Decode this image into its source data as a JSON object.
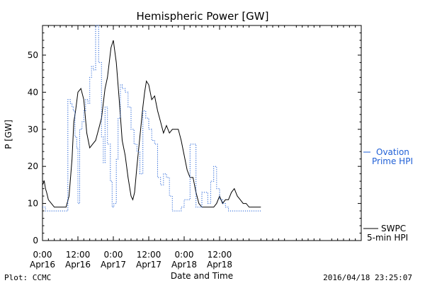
{
  "chart_data": {
    "type": "line",
    "title": "Hemispheric Power [GW]",
    "ylabel": "P [GW]",
    "xlabel": "Date and Time",
    "ylim": [
      0,
      58
    ],
    "xlim": [
      0,
      54
    ],
    "y_ticks": [
      0,
      10,
      20,
      30,
      40,
      50
    ],
    "x_ticks": [
      {
        "t": 0,
        "time": "0:00",
        "date": "Apr16"
      },
      {
        "t": 6,
        "time": "12:00",
        "date": "Apr16"
      },
      {
        "t": 12,
        "time": "0:00",
        "date": "Apr17"
      },
      {
        "t": 18,
        "time": "12:00",
        "date": "Apr17"
      },
      {
        "t": 24,
        "time": "0:00",
        "date": "Apr18"
      },
      {
        "t": 30,
        "time": "12:00",
        "date": "Apr18"
      }
    ],
    "grid": false,
    "series": [
      {
        "name": "SWPC 5-min HPI",
        "color": "#000000",
        "style": "solid",
        "x": [
          0,
          0.3,
          0.5,
          0.7,
          1.0,
          1.5,
          2.0,
          3.0,
          4.0,
          4.5,
          5.0,
          5.3,
          5.6,
          6.0,
          6.5,
          7.0,
          7.5,
          8.0,
          8.5,
          9.0,
          9.5,
          10.0,
          10.3,
          10.6,
          11.0,
          11.3,
          11.6,
          12.0,
          12.5,
          13.0,
          13.5,
          14.0,
          14.5,
          15.0,
          15.3,
          15.6,
          16.0,
          16.5,
          17.0,
          17.3,
          17.6,
          18.0,
          18.5,
          19.0,
          19.5,
          20.0,
          20.5,
          21.0,
          21.5,
          22.0,
          22.5,
          23.0,
          23.5,
          24.0,
          24.5,
          25.0,
          25.5,
          26.0,
          26.5,
          27.0,
          28.0,
          29.0,
          29.5,
          30.0,
          30.5,
          31.0,
          31.5,
          32.0,
          32.5,
          33.0,
          33.5,
          34.0,
          34.5,
          35.0,
          36.0,
          37.0
        ],
        "y": [
          15,
          16,
          14,
          13,
          11,
          10,
          9,
          9,
          9,
          12,
          22,
          32,
          35,
          40,
          41,
          38,
          29,
          25,
          26,
          27,
          30,
          33,
          37,
          41,
          44,
          48,
          52,
          54,
          48,
          38,
          27,
          23,
          17,
          12,
          11,
          13,
          20,
          28,
          36,
          40,
          43,
          42,
          38,
          39,
          35,
          32,
          29,
          31,
          29,
          30,
          30,
          30,
          27,
          23,
          19,
          17,
          17,
          13,
          10,
          9,
          9,
          9,
          10,
          12,
          10,
          11,
          11,
          13,
          14,
          12,
          11,
          10,
          10,
          9,
          9,
          9
        ]
      },
      {
        "name": "Ovation Prime HPI",
        "color": "#1f5fd6",
        "style": "dotted",
        "x": [
          0,
          0.5,
          1.0,
          2.0,
          3.0,
          4.0,
          4.3,
          4.7,
          5.0,
          5.2,
          5.5,
          5.8,
          6.0,
          6.3,
          6.7,
          7.0,
          7.3,
          7.7,
          8.0,
          8.3,
          8.6,
          9.0,
          9.5,
          10.0,
          10.3,
          10.6,
          11.0,
          11.5,
          11.8,
          12.1,
          12.5,
          12.8,
          13.2,
          13.5,
          14.0,
          14.5,
          15.0,
          15.5,
          16.0,
          16.5,
          17.0,
          17.5,
          18.0,
          18.5,
          19.0,
          19.5,
          20.0,
          20.5,
          21.0,
          21.5,
          22.0,
          22.5,
          23.0,
          23.5,
          24.0,
          25.0,
          26.0,
          27.0,
          28.0,
          28.5,
          29.0,
          29.5,
          30.0,
          30.5,
          31.0,
          31.5,
          32.0,
          32.5,
          33.0,
          33.5,
          34.0,
          34.5,
          35.0,
          36.0,
          37.0
        ],
        "y": [
          9,
          8,
          8,
          8,
          8,
          8,
          38,
          37,
          36,
          35,
          28,
          25,
          10,
          30,
          32,
          35,
          38,
          37,
          44,
          47,
          46,
          58,
          48,
          28,
          21,
          36,
          26,
          16,
          9,
          10,
          22,
          33,
          42,
          41,
          40,
          36,
          30,
          26,
          24,
          18,
          35,
          33,
          30,
          27,
          26,
          17,
          15,
          18,
          17,
          12,
          8,
          8,
          8,
          9,
          11,
          26,
          9,
          13,
          10,
          16,
          20,
          14,
          11,
          10,
          9,
          8,
          8,
          8,
          8,
          8,
          8,
          8,
          8,
          8,
          8
        ]
      }
    ],
    "legend": [
      {
        "line1": "Ovation",
        "line2": "Prime HPI",
        "color": "#1f5fd6"
      },
      {
        "line1": "SWPC",
        "line2": "5-min HPI",
        "color": "#000000"
      }
    ],
    "footer_left": "Plot: CCMC",
    "footer_right": "2016/04/18 23:25:07"
  }
}
